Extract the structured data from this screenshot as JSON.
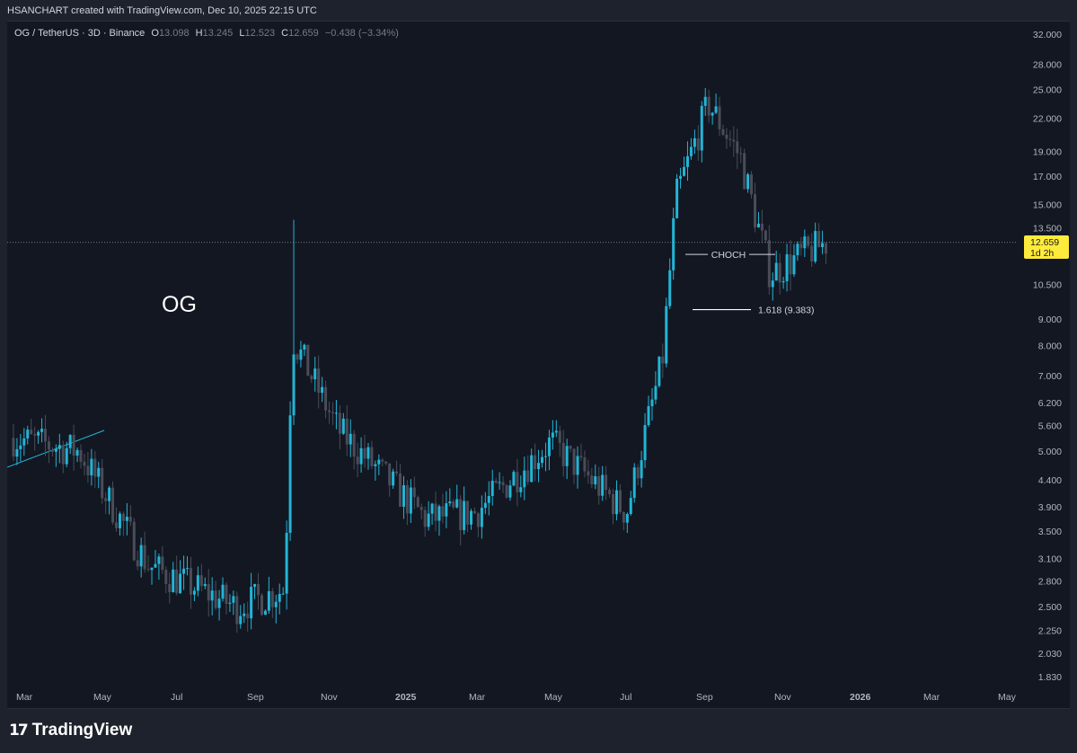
{
  "header": {
    "text": "HSANCHART created with TradingView.com, Dec 10, 2025 22:15 UTC"
  },
  "legend": {
    "symbol": "OG / TetherUS · 3D · Binance",
    "open_label": "O",
    "open": "13.098",
    "high_label": "H",
    "high": "13.245",
    "low_label": "L",
    "low": "12.523",
    "close_label": "C",
    "close": "12.659",
    "change": "−0.438 (−3.34%)"
  },
  "price_badge": {
    "price": "12.659",
    "countdown": "1d 2h"
  },
  "footer": {
    "logo_text": "TradingView"
  },
  "colors": {
    "background": "#131722",
    "frame": "#1e222d",
    "bull": "#22b5d6",
    "bear": "#4a4d58",
    "grid_text": "#b2b5be",
    "badge": "#ffeb3b"
  },
  "chart_data": {
    "type": "candlestick",
    "symbol": "OG / TetherUS",
    "interval": "3D",
    "exchange": "Binance",
    "y_scale": "log",
    "y_ticks": [
      "32.000",
      "28.000",
      "25.000",
      "22.000",
      "19.000",
      "17.000",
      "15.000",
      "13.500",
      "10.500",
      "9.000",
      "8.000",
      "7.000",
      "6.200",
      "5.600",
      "5.000",
      "4.400",
      "3.900",
      "3.500",
      "3.100",
      "2.800",
      "2.500",
      "2.250",
      "2.030",
      "1.830"
    ],
    "x_ticks": [
      "Mar",
      "May",
      "Jul",
      "Sep",
      "Nov",
      "2025",
      "Mar",
      "May",
      "Jul",
      "Sep",
      "Nov",
      "2026",
      "Mar",
      "May"
    ],
    "ylim": [
      1.75,
      34
    ],
    "current_price": 12.659,
    "annotations": {
      "big_label": "OG",
      "choch_label": "CHOCH",
      "fib_label": "1.618 (9.383)",
      "fib_value": 9.383,
      "choch_value": 12.0
    },
    "key_points": [
      {
        "date": "2024-02-22",
        "close": 5.3
      },
      {
        "date": "2024-04-15",
        "close": 5.0
      },
      {
        "date": "2024-06-10",
        "close": 3.0
      },
      {
        "date": "2024-08-20",
        "close": 2.5
      },
      {
        "date": "2024-09-28",
        "close": 2.7
      },
      {
        "date": "2024-10-04",
        "close": 8.3,
        "high": 14.0
      },
      {
        "date": "2024-11-10",
        "close": 5.5
      },
      {
        "date": "2025-01-20",
        "close": 3.7
      },
      {
        "date": "2025-03-01",
        "close": 3.8
      },
      {
        "date": "2025-05-01",
        "close": 5.2
      },
      {
        "date": "2025-07-01",
        "close": 3.8
      },
      {
        "date": "2025-07-30",
        "close": 7.5
      },
      {
        "date": "2025-08-10",
        "close": 15.5
      },
      {
        "date": "2025-09-05",
        "close": 23.5,
        "high": 25.0
      },
      {
        "date": "2025-10-01",
        "close": 18.5
      },
      {
        "date": "2025-10-25",
        "close": 11.0
      },
      {
        "date": "2025-11-20",
        "close": 12.0
      },
      {
        "date": "2025-12-10",
        "close": 12.659
      }
    ]
  }
}
